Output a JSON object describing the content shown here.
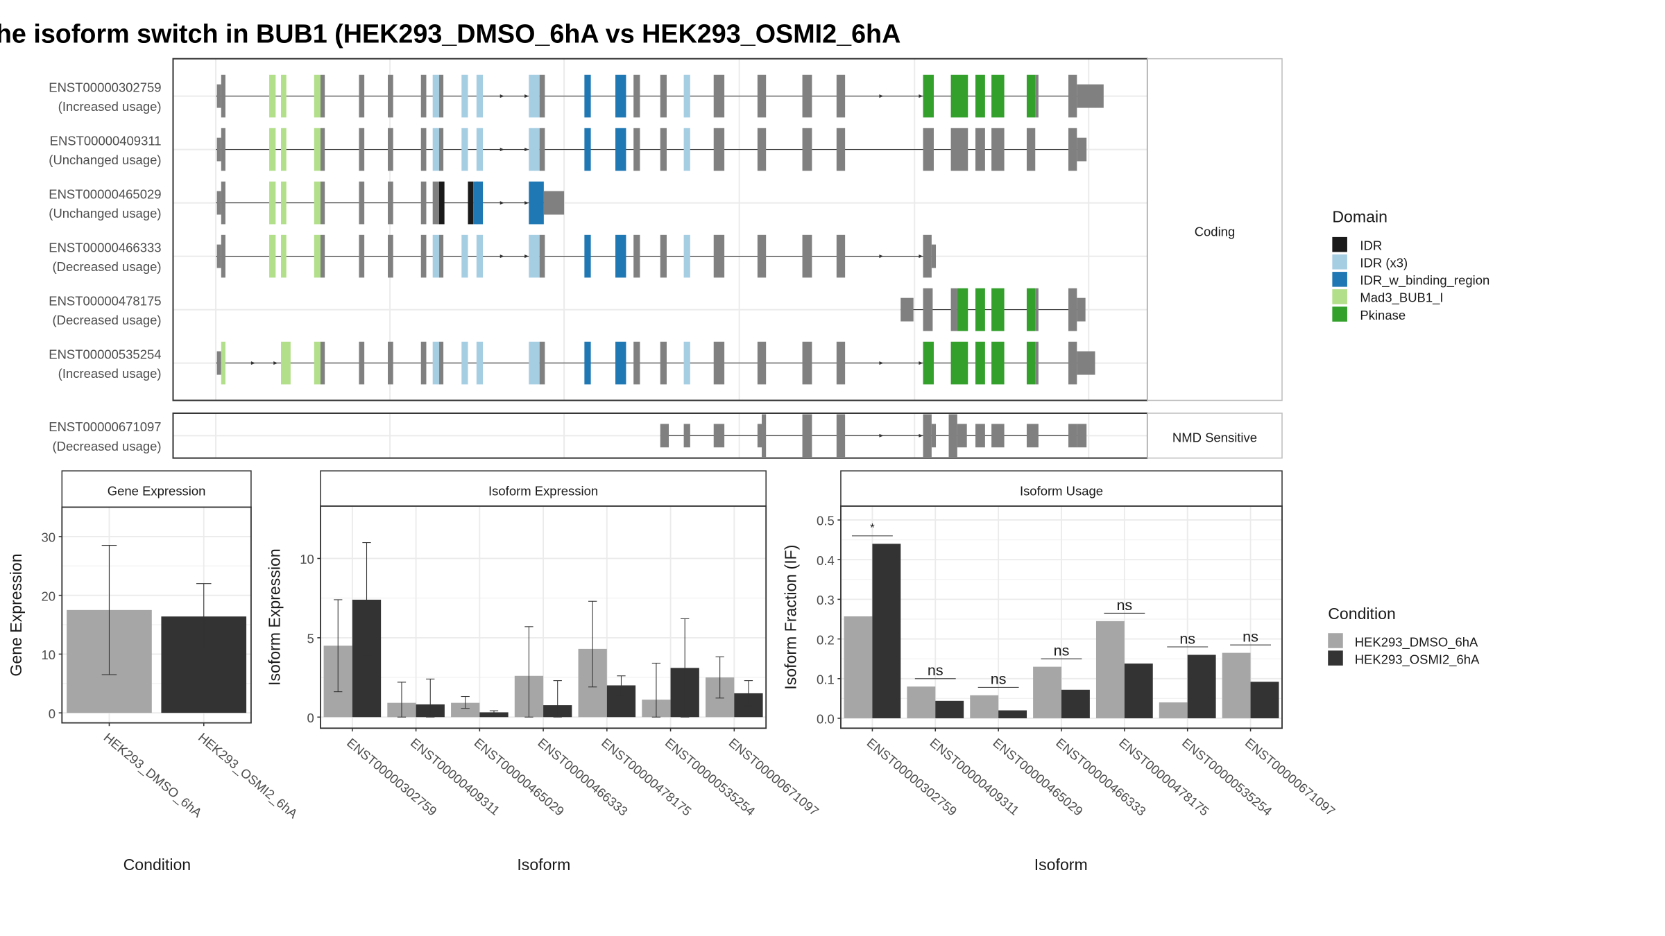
{
  "title": "he isoform switch in BUB1 (HEK293_DMSO_6hA vs HEK293_OSMI2_6hA",
  "colors": {
    "IDR": "#1a1a1a",
    "IDR (x3)": "#a6cee3",
    "IDR_w_binding_region": "#1f78b4",
    "Mad3_BUB1_I": "#b2df8a",
    "Pkinase": "#33a02c",
    "exon": "#808080",
    "dmso": "#a6a6a6",
    "osmi": "#333333",
    "panel_border": "#333333",
    "strip_bg": "#ffffff",
    "grid": "#ebebeb"
  },
  "structure": {
    "transcripts": [
      {
        "id": "ENST00000302759",
        "usage": "(Increased usage)"
      },
      {
        "id": "ENST00000409311",
        "usage": "(Unchanged usage)"
      },
      {
        "id": "ENST00000465029",
        "usage": "(Unchanged usage)"
      },
      {
        "id": "ENST00000466333",
        "usage": "(Decreased usage)"
      },
      {
        "id": "ENST00000478175",
        "usage": "(Decreased usage)"
      },
      {
        "id": "ENST00000535254",
        "usage": "(Increased usage)"
      }
    ],
    "transcripts_nmd": [
      {
        "id": "ENST00000671097",
        "usage": "(Decreased usage)"
      }
    ],
    "strip_coding": "Coding",
    "strip_nmd": "NMD Sensitive"
  },
  "legend_domain": {
    "title": "Domain",
    "items": [
      "IDR",
      "IDR (x3)",
      "IDR_w_binding_region",
      "Mad3_BUB1_I",
      "Pkinase"
    ]
  },
  "legend_condition": {
    "title": "Condition",
    "items": [
      "HEK293_DMSO_6hA",
      "HEK293_OSMI2_6hA"
    ]
  },
  "chart_data": [
    {
      "type": "bar",
      "strip": "Gene Expression",
      "xlabel": "Condition",
      "ylabel": "Gene Expression",
      "ylim": [
        -1.7,
        35
      ],
      "yticks": [
        0,
        10,
        20,
        30
      ],
      "categories": [
        "HEK293_DMSO_6hA",
        "HEK293_OSMI2_6hA"
      ],
      "values": [
        17.5,
        16.4
      ],
      "error_low": [
        6.5,
        11.0
      ],
      "error_high": [
        28.5,
        22.0
      ]
    },
    {
      "type": "bar",
      "strip": "Isoform Expression",
      "xlabel": "Isoform",
      "ylabel": "Isoform Expression",
      "ylim": [
        -0.7,
        13.3
      ],
      "yticks": [
        0,
        5,
        10
      ],
      "categories": [
        "ENST00000302759",
        "ENST00000409311",
        "ENST00000465029",
        "ENST00000466333",
        "ENST00000478175",
        "ENST00000535254",
        "ENST00000671097"
      ],
      "series": [
        {
          "name": "HEK293_DMSO_6hA",
          "values": [
            4.5,
            0.9,
            0.9,
            2.6,
            4.3,
            1.1,
            2.5
          ],
          "error_low": [
            1.6,
            0.0,
            0.55,
            0.0,
            1.9,
            0.0,
            1.2
          ],
          "error_high": [
            7.4,
            2.2,
            1.3,
            5.7,
            7.3,
            3.4,
            3.8
          ]
        },
        {
          "name": "HEK293_OSMI2_6hA",
          "values": [
            7.4,
            0.8,
            0.3,
            0.75,
            2.0,
            3.1,
            1.5
          ],
          "error_low": [
            3.9,
            0.0,
            0.2,
            0.0,
            1.3,
            0.0,
            0.7
          ],
          "error_high": [
            11.0,
            2.4,
            0.4,
            2.3,
            2.6,
            6.2,
            2.3
          ]
        }
      ]
    },
    {
      "type": "bar",
      "strip": "Isoform Usage",
      "xlabel": "Isoform",
      "ylabel": "Isoform Fraction (IF)",
      "ylim": [
        -0.025,
        0.535
      ],
      "yticks": [
        0.0,
        0.1,
        0.2,
        0.3,
        0.4,
        0.5
      ],
      "categories": [
        "ENST00000302759",
        "ENST00000409311",
        "ENST00000465029",
        "ENST00000466333",
        "ENST00000478175",
        "ENST00000535254",
        "ENST00000671097"
      ],
      "series": [
        {
          "name": "HEK293_DMSO_6hA",
          "values": [
            0.257,
            0.08,
            0.058,
            0.13,
            0.245,
            0.04,
            0.165
          ]
        },
        {
          "name": "HEK293_OSMI2_6hA",
          "values": [
            0.44,
            0.044,
            0.02,
            0.072,
            0.138,
            0.16,
            0.092
          ]
        }
      ],
      "significance": [
        "*",
        "ns",
        "ns",
        "ns",
        "ns",
        "ns",
        "ns"
      ]
    }
  ]
}
